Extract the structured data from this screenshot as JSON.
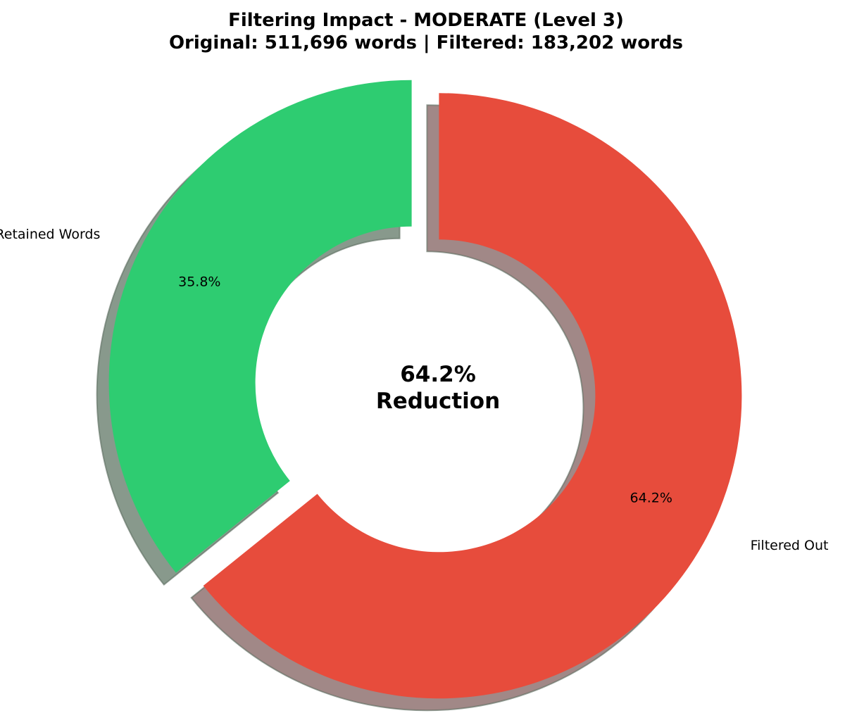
{
  "chart_data": {
    "type": "pie",
    "title": [
      "Filtering Impact - MODERATE (Level 3)",
      "Original: 511,696 words | Filtered: 183,202 words"
    ],
    "categories": [
      "Retained Words",
      "Filtered Out"
    ],
    "values": [
      35.8,
      64.2
    ],
    "value_labels": [
      "35.8%",
      "64.2%"
    ],
    "colors": [
      "#2ecc71",
      "#e74c3c"
    ],
    "shadow_colors": [
      "#88998c",
      "#a18887"
    ],
    "donut": true,
    "exploded": true,
    "shadow": true,
    "center_text": [
      "64.2%",
      "Reduction"
    ]
  }
}
